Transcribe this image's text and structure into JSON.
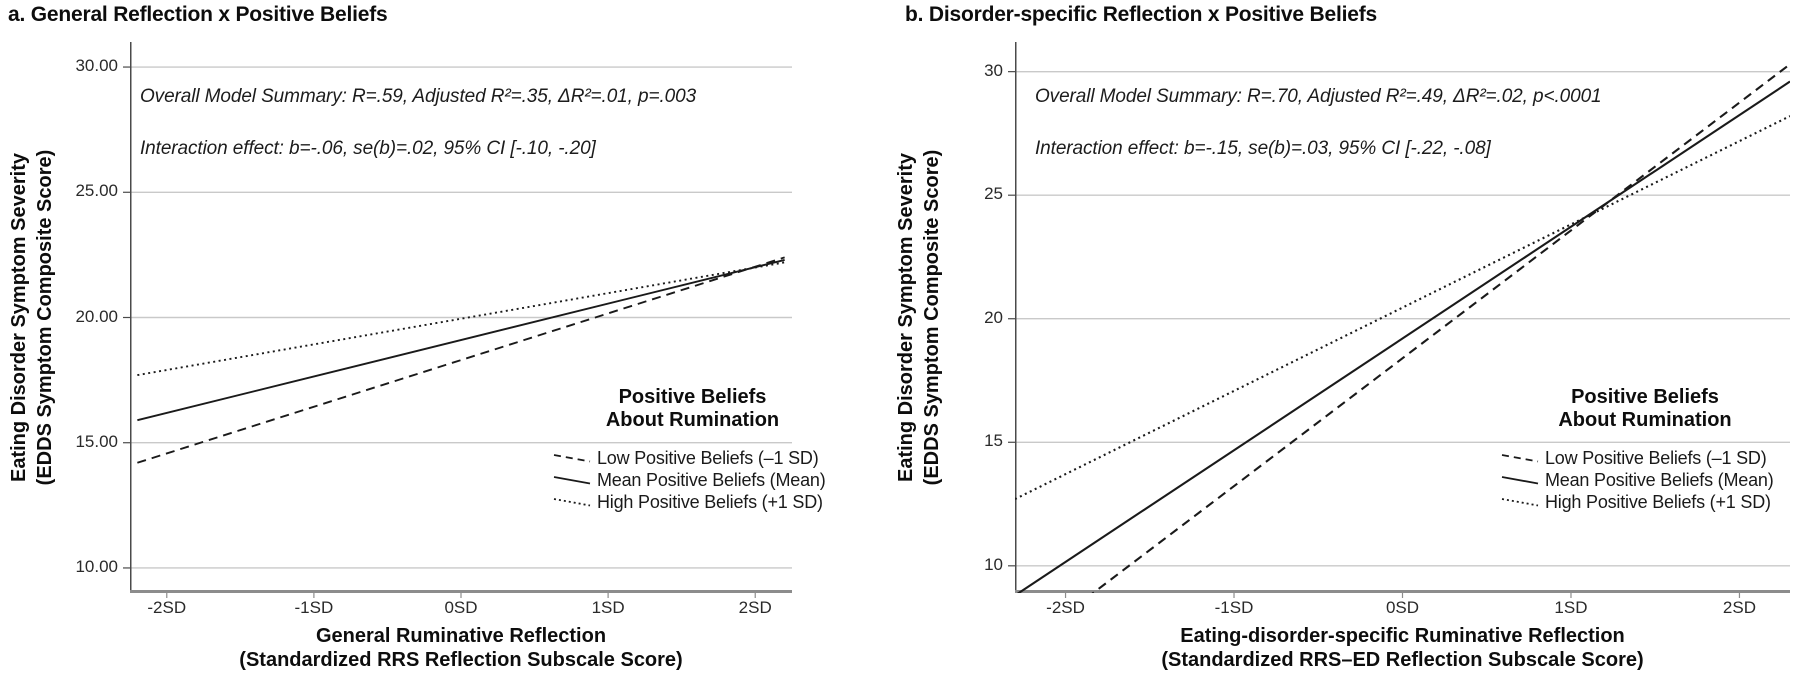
{
  "figure": {
    "background": "#ffffff",
    "text_color": "#111111",
    "gridline_color": "#c9c9c9",
    "bottom_axis_color": "#8c8c8c",
    "left_axis_color": "#4a4a4a",
    "series_line_color": "#1a1a1a"
  },
  "chart_data": [
    {
      "id": "a",
      "type": "line",
      "title": "a. General Reflection x Positive Beliefs",
      "annotations": [
        "Overall Model Summary: R=.59, Adjusted R²=.35, ΔR²=.01, p=.003",
        "Interaction effect:  b=-.06, se(b)=.02, 95% CI [-.10, -.20]"
      ],
      "xlabel_line1": "General Ruminative Reflection",
      "xlabel_line2": "(Standardized RRS Reflection Subscale Score)",
      "ylabel_line1": "Eating Disorder Symptom Severity",
      "ylabel_line2": "(EDDS Symptom Composite Score)",
      "xlim": [
        -2.25,
        2.25
      ],
      "ylim": [
        9,
        31
      ],
      "grid": "horizontal gridlines only",
      "legend_position": "inside bottom-right",
      "x_ticks": {
        "values": [
          -2,
          -1,
          0,
          1,
          2
        ],
        "labels": [
          "-2SD",
          "-1SD",
          "0SD",
          "1SD",
          "2SD"
        ]
      },
      "y_ticks": {
        "values": [
          30,
          25,
          20,
          15,
          10
        ],
        "labels": [
          "30.00",
          "25.00",
          "20.00",
          "15.00",
          "10.00"
        ]
      },
      "legend": {
        "title_line1": "Positive Beliefs",
        "title_line2": "About Rumination",
        "entries": [
          {
            "label": "Low Positive Beliefs (–1 SD)",
            "style": "dashed"
          },
          {
            "label": "Mean Positive Beliefs (Mean)",
            "style": "solid"
          },
          {
            "label": "High Positive Beliefs (+1 SD)",
            "style": "dotted"
          }
        ]
      },
      "series": [
        {
          "name": "Low Positive Beliefs (–1 SD)",
          "style": "dashed",
          "x": [
            -2.2,
            2.2
          ],
          "y": [
            14.2,
            22.4
          ]
        },
        {
          "name": "Mean Positive Beliefs (Mean)",
          "style": "solid",
          "x": [
            -2.2,
            2.2
          ],
          "y": [
            15.9,
            22.3
          ]
        },
        {
          "name": "High Positive Beliefs (+1 SD)",
          "style": "dotted",
          "x": [
            -2.2,
            2.2
          ],
          "y": [
            17.7,
            22.2
          ]
        }
      ]
    },
    {
      "id": "b",
      "type": "line",
      "title": "b. Disorder-specific Reflection x Positive Beliefs",
      "annotations": [
        "Overall Model Summary: R=.70, Adjusted R²=.49, ΔR²=.02, p<.0001",
        "Interaction effect:  b=-.15, se(b)=.03, 95% CI [-.22, -.08]"
      ],
      "xlabel_line1": "Eating-disorder-specific Ruminative Reflection",
      "xlabel_line2": "(Standardized RRS–ED Reflection Subscale Score)",
      "ylabel_line1": "Eating Disorder Symptom Severity",
      "ylabel_line2": "(EDDS Symptom Composite Score)",
      "xlim": [
        -2.3,
        2.3
      ],
      "ylim": [
        8.9,
        31.2
      ],
      "grid": "horizontal gridlines only",
      "legend_position": "inside bottom-right",
      "x_ticks": {
        "values": [
          -2,
          -1,
          0,
          1,
          2
        ],
        "labels": [
          "-2SD",
          "-1SD",
          "0SD",
          "1SD",
          "2SD"
        ]
      },
      "y_ticks": {
        "values": [
          30,
          25,
          20,
          15,
          10
        ],
        "labels": [
          "30",
          "25",
          "20",
          "15",
          "10"
        ]
      },
      "legend": {
        "title_line1": "Positive Beliefs",
        "title_line2": "About Rumination",
        "entries": [
          {
            "label": "Low Positive Beliefs (–1 SD)",
            "style": "dashed"
          },
          {
            "label": "Mean Positive Beliefs (Mean)",
            "style": "solid"
          },
          {
            "label": "High Positive Beliefs (+1 SD)",
            "style": "dotted"
          }
        ]
      },
      "series": [
        {
          "name": "Low Positive Beliefs (–1 SD)",
          "style": "dashed",
          "x": [
            -2.3,
            2.3
          ],
          "y": [
            6.5,
            30.3
          ]
        },
        {
          "name": "Mean Positive Beliefs (Mean)",
          "style": "solid",
          "x": [
            -2.3,
            2.3
          ],
          "y": [
            8.8,
            29.6
          ]
        },
        {
          "name": "High Positive Beliefs (+1 SD)",
          "style": "dotted",
          "x": [
            -2.3,
            2.3
          ],
          "y": [
            12.7,
            28.2
          ]
        }
      ]
    }
  ]
}
